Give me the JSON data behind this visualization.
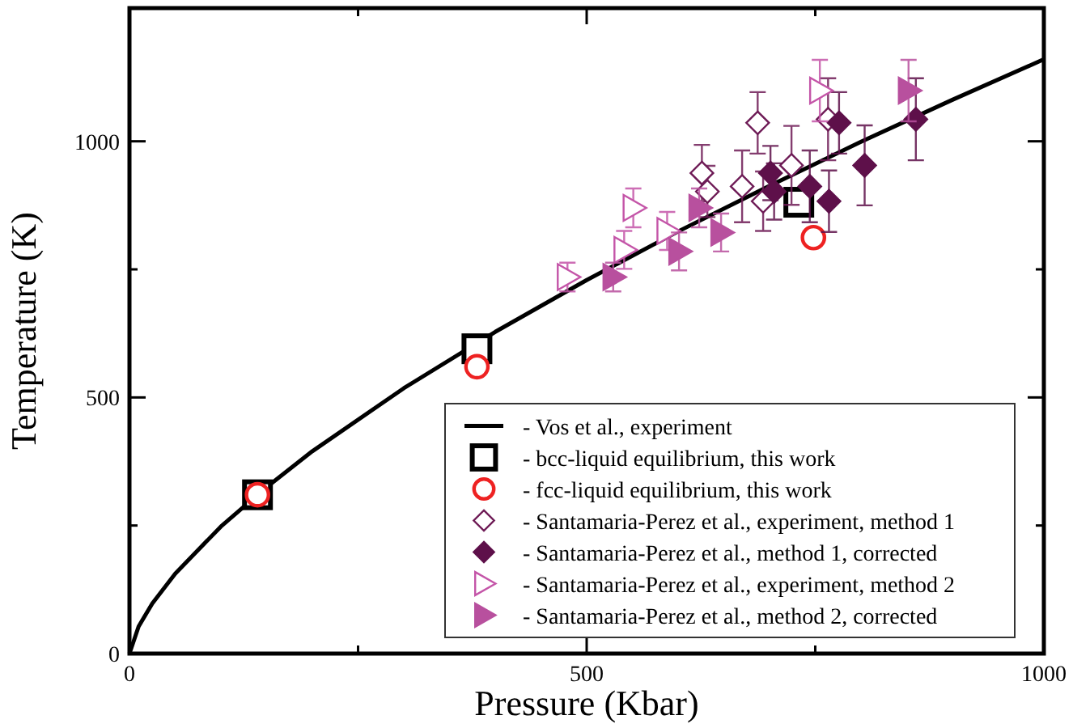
{
  "chart_data": {
    "type": "scatter",
    "xlabel": "Pressure (Kbar)",
    "ylabel": "Temperature (K)",
    "xlim": [
      0,
      1000
    ],
    "ylim": [
      0,
      1260
    ],
    "xticks": [
      0,
      {
        "value": 250,
        "label": null
      },
      500,
      {
        "value": 750,
        "label": null
      },
      1000
    ],
    "yticks": [
      0,
      {
        "value": 250,
        "label": null
      },
      500,
      {
        "value": 750,
        "label": null
      },
      1000
    ],
    "grid": false,
    "legend": "bottom right",
    "series": [
      {
        "name": "- Vos et al., experiment",
        "type": "line",
        "marker": "none",
        "line_style": "solid",
        "color": "#000000",
        "x": [
          0,
          10,
          25,
          50,
          100,
          150,
          200,
          300,
          400,
          500,
          600,
          700,
          800,
          900,
          1000
        ],
        "values": [
          0,
          53,
          98,
          156,
          248,
          325,
          395,
          518,
          628,
          729,
          824,
          913,
          999,
          1081,
          1160
        ]
      },
      {
        "name": "- bcc-liquid equilibrium, this work",
        "marker": "square",
        "color": "#000000",
        "x": [
          140,
          380,
          732
        ],
        "values": [
          310,
          595,
          881
        ]
      },
      {
        "name": "- fcc-liquid equilibrium, this work",
        "marker": "circle",
        "color": "#ee2222",
        "x": [
          140,
          380,
          748
        ],
        "values": [
          310,
          560,
          812
        ]
      },
      {
        "name": "- Santamaria-Perez et al., experiment, method 1",
        "marker": "diamond",
        "color": "#6e1b56",
        "x": [
          687,
          626,
          632,
          670,
          693,
          724,
          764
        ],
        "values": [
          1036,
          938,
          902,
          912,
          883,
          953,
          1043
        ],
        "errors": [
          60,
          55,
          50,
          70,
          58,
          77,
          80
        ]
      },
      {
        "name": "- Santamaria-Perez et al., method 1, corrected",
        "marker": "diamond",
        "color": "#5e104a",
        "x": [
          776,
          701,
          705,
          744,
          765,
          804,
          860
        ],
        "values": [
          1036,
          938,
          902,
          912,
          883,
          953,
          1043
        ],
        "errors": [
          60,
          53,
          55,
          70,
          60,
          78,
          80
        ]
      },
      {
        "name": "- Santamaria-Perez et al., experiment, method 2",
        "marker": "triangle",
        "color": "#c455a8",
        "x": [
          479,
          541,
          551,
          588,
          755
        ],
        "values": [
          735,
          788,
          870,
          825,
          1099
        ],
        "errors": [
          28,
          37,
          38,
          37,
          60
        ]
      },
      {
        "name": "- Santamaria-Perez et al., method 2, corrected",
        "marker": "triangle",
        "color": "#b8509e",
        "x": [
          529,
          601,
          623,
          647,
          852
        ],
        "values": [
          735,
          785,
          870,
          822,
          1099
        ],
        "errors": [
          28,
          37,
          38,
          37,
          60
        ]
      }
    ]
  }
}
